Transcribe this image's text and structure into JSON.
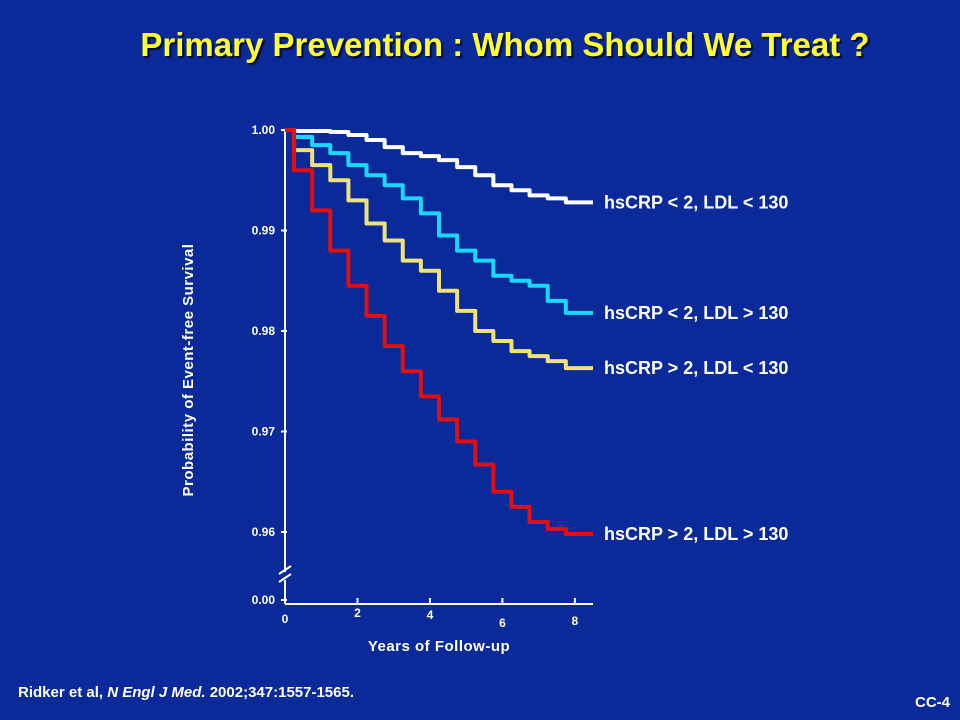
{
  "slide": {
    "title": "Primary Prevention : Whom Should We Treat ?",
    "citation_prefix": "Ridker et al, ",
    "citation_journal": "N Engl J Med.",
    "citation_suffix": " 2002;347:1557-1565.",
    "slide_id": "CC-4"
  },
  "colors": {
    "background": "#0a2a9a",
    "title": "#ffff33"
  },
  "chart_data": {
    "type": "line",
    "xlabel": "Years of Follow-up",
    "ylabel": "Probability of Event-free Survival",
    "x_ticks": [
      "0",
      "2",
      "4",
      "6",
      "8"
    ],
    "y_ticks": [
      "1.00",
      "0.99",
      "0.98",
      "0.97",
      "0.96",
      "0.00"
    ],
    "xlim": [
      0,
      8.5
    ],
    "ylim": [
      0.96,
      1.0
    ],
    "y_axis_break": true,
    "grid": false,
    "series": [
      {
        "name": "hsCRP < 2, LDL < 130",
        "color": "#ffffff",
        "x": [
          0,
          0.5,
          1,
          1.5,
          2,
          2.5,
          3,
          3.5,
          4,
          4.5,
          5,
          5.5,
          6,
          6.5,
          7,
          7.5,
          8,
          8.5
        ],
        "y": [
          1.0,
          0.9999,
          0.9999,
          0.9998,
          0.9995,
          0.999,
          0.9983,
          0.9977,
          0.9974,
          0.997,
          0.9963,
          0.9955,
          0.9945,
          0.994,
          0.9935,
          0.9932,
          0.9928,
          0.9928
        ]
      },
      {
        "name": "hsCRP < 2, LDL > 130",
        "color": "#1ad8ff",
        "x": [
          0,
          0.5,
          1,
          1.5,
          2,
          2.5,
          3,
          3.5,
          4,
          4.5,
          5,
          5.5,
          6,
          6.5,
          7,
          7.5,
          8,
          8.5
        ],
        "y": [
          1.0,
          0.9993,
          0.9985,
          0.9977,
          0.9965,
          0.9955,
          0.9945,
          0.9932,
          0.9917,
          0.9895,
          0.988,
          0.987,
          0.9855,
          0.985,
          0.9845,
          0.983,
          0.9818,
          0.9818
        ]
      },
      {
        "name": "hsCRP > 2, LDL < 130",
        "color": "#eee27a",
        "x": [
          0,
          0.5,
          1,
          1.5,
          2,
          2.5,
          3,
          3.5,
          4,
          4.5,
          5,
          5.5,
          6,
          6.5,
          7,
          7.5,
          8,
          8.5
        ],
        "y": [
          1.0,
          0.998,
          0.9965,
          0.995,
          0.993,
          0.9907,
          0.989,
          0.987,
          0.986,
          0.984,
          0.982,
          0.98,
          0.979,
          0.978,
          0.9775,
          0.977,
          0.9763,
          0.9763
        ]
      },
      {
        "name": "hsCRP > 2, LDL > 130",
        "color": "#e01010",
        "x": [
          0,
          0.5,
          1,
          1.5,
          2,
          2.5,
          3,
          3.5,
          4,
          4.5,
          5,
          5.5,
          6,
          6.5,
          7,
          7.5,
          8,
          8.5
        ],
        "y": [
          1.0,
          0.996,
          0.992,
          0.988,
          0.9845,
          0.9815,
          0.9785,
          0.976,
          0.9735,
          0.9712,
          0.969,
          0.9667,
          0.964,
          0.9625,
          0.961,
          0.9603,
          0.9598,
          0.9598
        ]
      }
    ]
  }
}
